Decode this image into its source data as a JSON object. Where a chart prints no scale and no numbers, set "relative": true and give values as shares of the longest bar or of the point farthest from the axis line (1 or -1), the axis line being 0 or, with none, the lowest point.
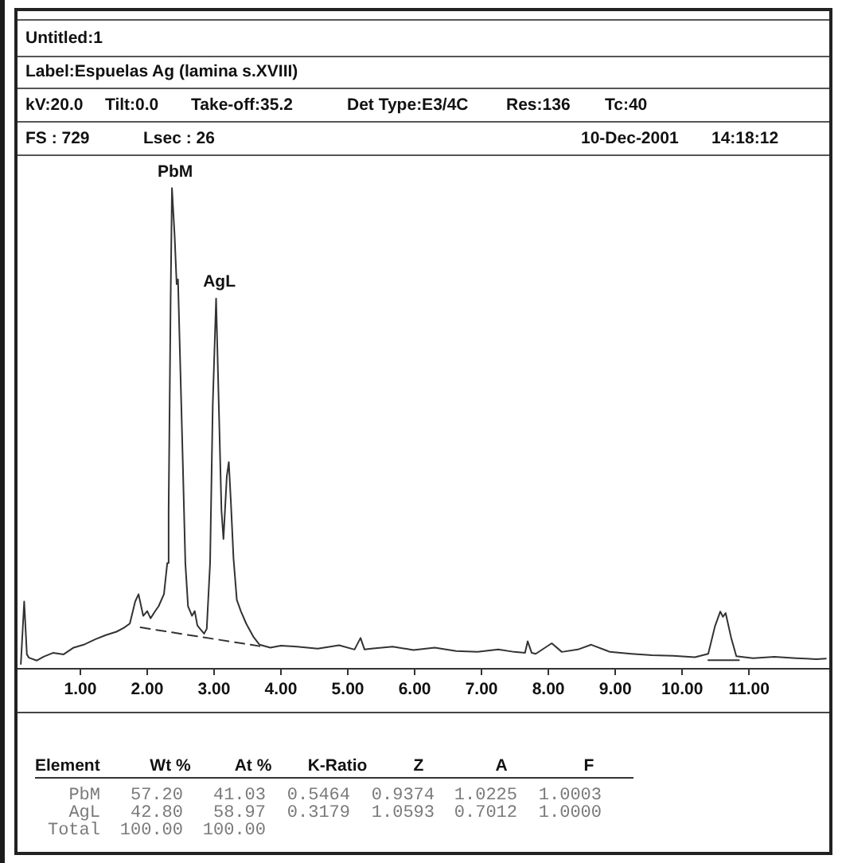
{
  "chart_data": {
    "type": "line",
    "title": "Untitled:1",
    "subtitle": "Label:Espuelas Ag (lamina s.XVIII)",
    "annotations": [
      "kV:20.0",
      "Tilt:0.0",
      "Take-off:35.2",
      "Det Type:E3/4C",
      "Res:136",
      "Tc:40",
      "FS : 729",
      "Lsec : 26",
      "10-Dec-2001",
      "14:18:12",
      "Element",
      "Wt %",
      "At %",
      "K-Ratio",
      "Z",
      "A",
      "F",
      "PbM",
      "57.20",
      "41.03",
      "0.5464",
      "0.9374",
      "1.0225",
      "1.0003",
      "AgL",
      "42.80",
      "58.97",
      "0.3179",
      "1.0593",
      "0.7012",
      "1.0000",
      "Total",
      "100.00",
      "100.00",
      {
        "text": "PbM",
        "x": 2.37,
        "y": 1.0
      },
      {
        "text": "AgL",
        "x": 3.03,
        "y": 0.77
      }
    ],
    "relative": true,
    "xlim": [
      0.06,
      12.2
    ],
    "xticks": [
      {
        "value": 1,
        "label": "1.00"
      },
      {
        "value": 2,
        "label": "2.00"
      },
      {
        "value": 3,
        "label": "3.00"
      },
      {
        "value": 4,
        "label": "4.00"
      },
      {
        "value": 5,
        "label": "5.00"
      },
      {
        "value": 6,
        "label": "6.00"
      },
      {
        "value": 7,
        "label": "7.00"
      },
      {
        "value": 8,
        "label": "8.00"
      },
      {
        "value": 9,
        "label": "9.00"
      },
      {
        "value": 10,
        "label": "10.00"
      },
      {
        "value": 11,
        "label": "11.00"
      }
    ],
    "grid": false,
    "legend": false,
    "marker": "none",
    "line_style": "solid",
    "series": [
      {
        "color": "#333333",
        "x": [
          0.11,
          0.16,
          0.2,
          0.23,
          0.35,
          0.45,
          0.59,
          0.75,
          0.9,
          1.05,
          1.22,
          1.38,
          1.54,
          1.65,
          1.74,
          1.82,
          1.87,
          1.94,
          2.0,
          2.05,
          2.12,
          2.17,
          2.25,
          2.3,
          2.32,
          2.35,
          2.37,
          2.41,
          2.44,
          2.46,
          2.5,
          2.53,
          2.57,
          2.61,
          2.67,
          2.71,
          2.75,
          2.79,
          2.85,
          2.89,
          2.94,
          2.98,
          3.03,
          3.07,
          3.11,
          3.14,
          3.19,
          3.22,
          3.25,
          3.29,
          3.34,
          3.4,
          3.48,
          3.59,
          3.68,
          3.84,
          4.0,
          4.24,
          4.55,
          4.87,
          5.1,
          5.19,
          5.25,
          5.35,
          5.67,
          5.98,
          6.3,
          6.62,
          6.94,
          7.25,
          7.49,
          7.65,
          7.69,
          7.75,
          7.81,
          8.05,
          8.2,
          8.44,
          8.64,
          8.92,
          9.24,
          9.55,
          9.87,
          10.19,
          10.39,
          10.49,
          10.57,
          10.61,
          10.65,
          10.73,
          10.81,
          11.06,
          11.38,
          11.7,
          12.01,
          12.15
        ],
        "values": [
          0.01,
          0.14,
          0.03,
          0.023,
          0.017,
          0.025,
          0.033,
          0.03,
          0.044,
          0.05,
          0.061,
          0.07,
          0.077,
          0.085,
          0.094,
          0.14,
          0.155,
          0.11,
          0.12,
          0.105,
          0.12,
          0.13,
          0.155,
          0.22,
          0.33,
          0.77,
          1.0,
          0.9,
          0.8,
          0.81,
          0.6,
          0.44,
          0.22,
          0.13,
          0.11,
          0.12,
          0.09,
          0.083,
          0.073,
          0.083,
          0.22,
          0.55,
          0.77,
          0.55,
          0.33,
          0.27,
          0.4,
          0.43,
          0.35,
          0.23,
          0.143,
          0.12,
          0.094,
          0.066,
          0.05,
          0.044,
          0.048,
          0.046,
          0.042,
          0.049,
          0.04,
          0.064,
          0.04,
          0.042,
          0.046,
          0.039,
          0.044,
          0.037,
          0.035,
          0.04,
          0.035,
          0.033,
          0.057,
          0.033,
          0.031,
          0.053,
          0.035,
          0.04,
          0.05,
          0.035,
          0.031,
          0.028,
          0.027,
          0.024,
          0.031,
          0.088,
          0.119,
          0.108,
          0.116,
          0.066,
          0.026,
          0.022,
          0.025,
          0.022,
          0.02,
          0.021
        ]
      },
      {
        "color": "#333333",
        "line_style": "dashed",
        "x": [
          1.9,
          3.68
        ],
        "values": [
          0.086,
          0.047
        ]
      },
      {
        "color": "#333333",
        "x": [
          10.39,
          10.85
        ],
        "values": [
          0.018,
          0.018
        ]
      }
    ]
  }
}
